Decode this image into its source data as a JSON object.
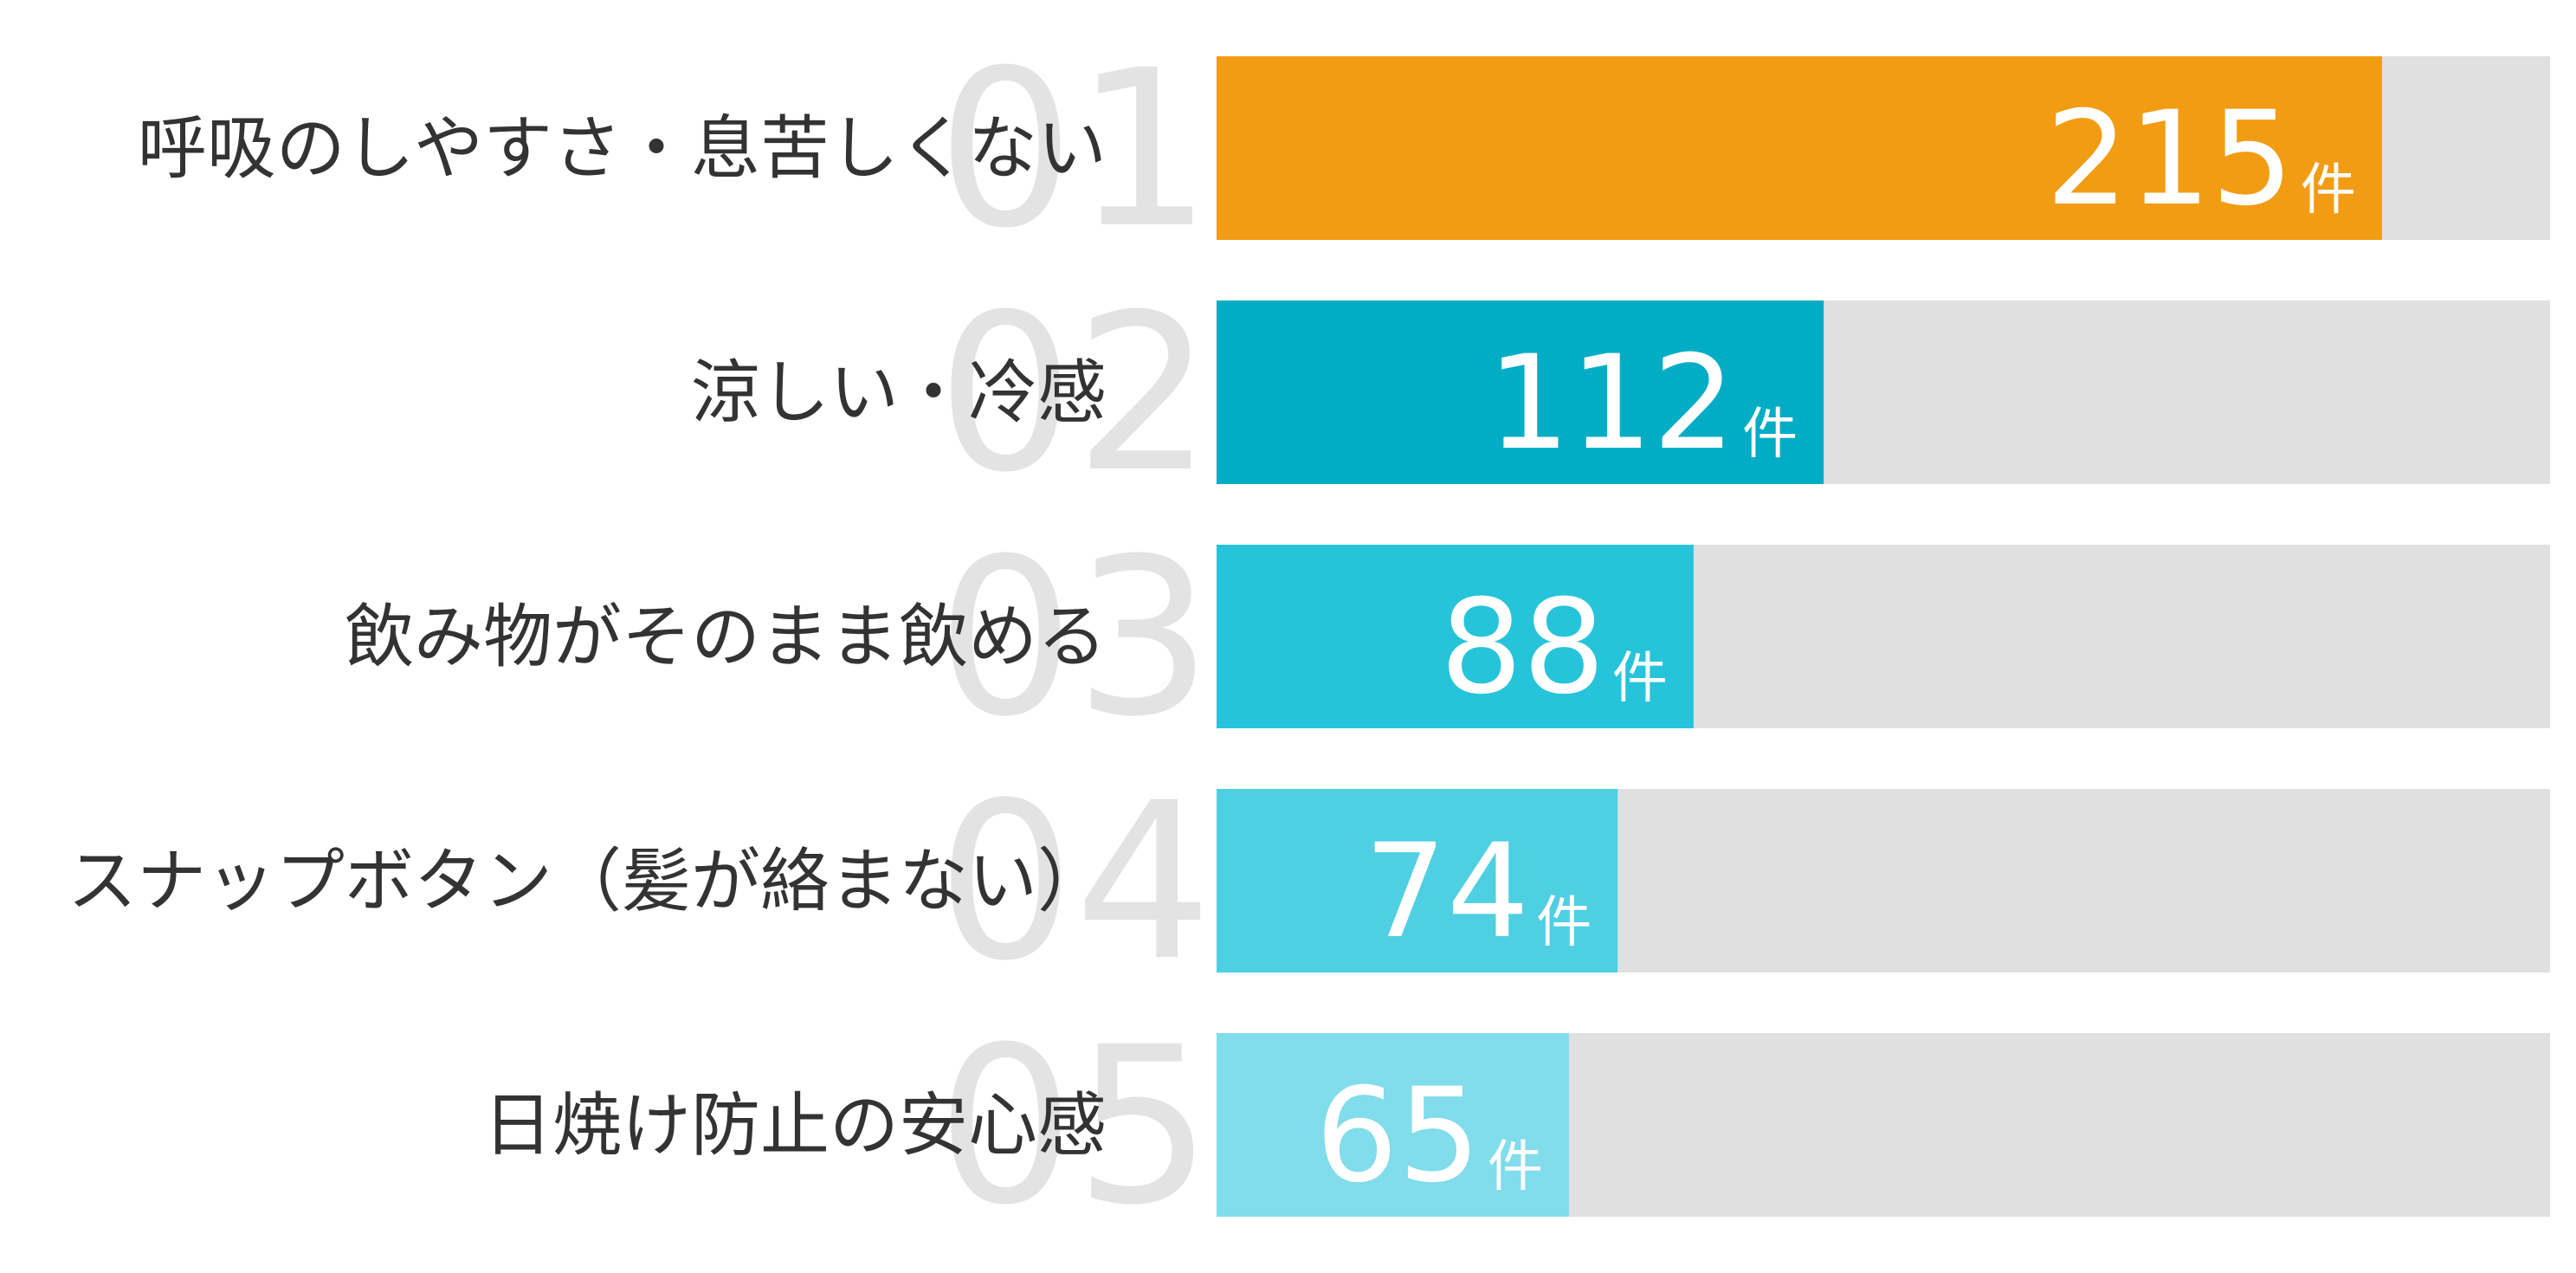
{
  "chart_data": {
    "type": "bar",
    "orientation": "horizontal",
    "categories": [
      "呼吸のしやすさ・息苦しくない",
      "涼しい・冷感",
      "飲み物がそのまま飲める",
      "スナップボタン（髪が絡まない）",
      "日焼け防止の安心感"
    ],
    "ranks": [
      "01",
      "02",
      "03",
      "04",
      "05"
    ],
    "values": [
      215,
      112,
      88,
      74,
      65
    ],
    "unit": "件",
    "xlim": [
      0,
      246
    ],
    "bar_colors": [
      "#f29c14",
      "#00adc4",
      "#26c4da",
      "#4fcfe2",
      "#81dceb"
    ],
    "track_color": "#e0e0e0",
    "rank_color": "#e3e3e3",
    "label_color": "#333333",
    "grid": false,
    "legend": "none"
  }
}
